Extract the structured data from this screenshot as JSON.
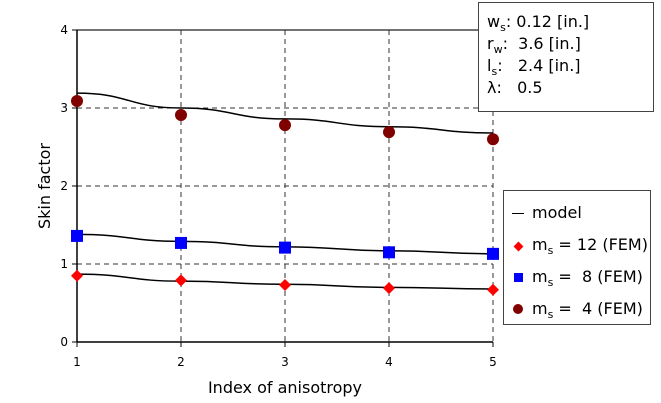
{
  "chart_data": {
    "type": "scatter",
    "xlabel": "Index of anisotropy",
    "ylabel": "Skin factor",
    "xlim": [
      1,
      5
    ],
    "ylim": [
      0,
      4
    ],
    "xticks": [
      "1",
      "2",
      "3",
      "4",
      "5"
    ],
    "yticks": [
      "0",
      "1",
      "2",
      "3",
      "4"
    ],
    "grid": true,
    "x": [
      1,
      2,
      3,
      4,
      5
    ],
    "series": [
      {
        "name": "model",
        "kind": "line",
        "color": "#000000",
        "values": [
          3.19,
          3.0,
          2.86,
          2.76,
          2.68
        ]
      },
      {
        "name": "model",
        "kind": "line",
        "color": "#000000",
        "values": [
          1.38,
          1.29,
          1.22,
          1.17,
          1.13
        ]
      },
      {
        "name": "model",
        "kind": "line",
        "color": "#000000",
        "values": [
          0.87,
          0.78,
          0.74,
          0.7,
          0.68
        ]
      },
      {
        "name": "m_s = 12 (FEM)",
        "kind": "marker",
        "marker": "diamond",
        "color": "#ff0000",
        "values": [
          0.85,
          0.79,
          0.73,
          0.69,
          0.67
        ]
      },
      {
        "name": "m_s = 8 (FEM)",
        "kind": "marker",
        "marker": "square",
        "color": "#0000ff",
        "values": [
          1.36,
          1.27,
          1.21,
          1.15,
          1.13
        ]
      },
      {
        "name": "m_s = 4 (FEM)",
        "kind": "marker",
        "marker": "circle",
        "color": "#800000",
        "values": [
          3.09,
          2.91,
          2.78,
          2.69,
          2.6
        ]
      }
    ],
    "legend_placement": "right",
    "parameters": [
      {
        "sym": "w",
        "sub": "s",
        "value": ": 0.12 [in.]"
      },
      {
        "sym": "r",
        "sub": "w",
        "value": ":  3.6 [in.]"
      },
      {
        "sym": "l",
        "sub": "s",
        "value": ":   2.4 [in.]"
      },
      {
        "sym": "λ",
        "sub": "",
        "value": ":   0.5"
      }
    ],
    "legend": [
      {
        "symbol": "line",
        "label": "model"
      },
      {
        "symbol": "diamond",
        "prefix": "m",
        "sub": "s",
        "label": " = 12 (FEM)"
      },
      {
        "symbol": "square",
        "prefix": "m",
        "sub": "s",
        "label": " =  8 (FEM)"
      },
      {
        "symbol": "circle",
        "prefix": "m",
        "sub": "s",
        "label": " =  4 (FEM)"
      }
    ]
  }
}
